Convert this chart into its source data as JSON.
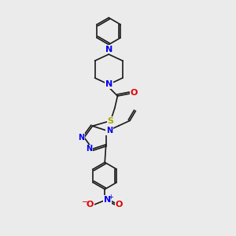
{
  "bg_color": "#ebebeb",
  "bond_color": "#1a1a1a",
  "N_color": "#0000ee",
  "O_color": "#dd0000",
  "S_color": "#aaaa00",
  "lw": 1.2,
  "fs": 7.0,
  "xlim": [
    0,
    10
  ],
  "ylim": [
    0,
    10
  ]
}
